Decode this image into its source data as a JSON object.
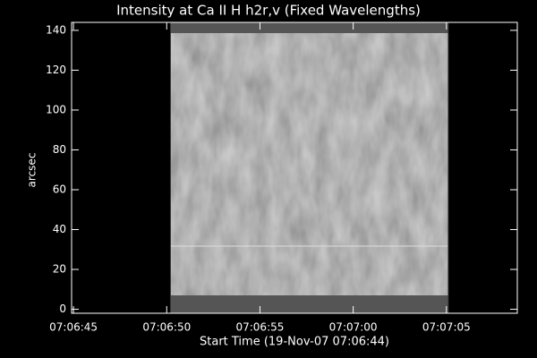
{
  "chart_data": {
    "type": "image",
    "title": "Intensity at Ca II H h2r,v (Fixed Wavelengths)",
    "x_label": "Start Time (19-Nov-07 07:06:44)",
    "y_label": "arcsec",
    "xlim": [
      0.9,
      24.8
    ],
    "ylim": [
      -2,
      144
    ],
    "xticks": [
      {
        "value": 1,
        "label": "07:06:45"
      },
      {
        "value": 6,
        "label": "07:06:50"
      },
      {
        "value": 11,
        "label": "07:06:55"
      },
      {
        "value": 16,
        "label": "07:07:00"
      },
      {
        "value": 21,
        "label": "07:07:05"
      }
    ],
    "yticks": [
      0,
      20,
      40,
      60,
      80,
      100,
      120,
      140
    ],
    "image_x": [
      6.2,
      21.1
    ],
    "image_y": [
      -2,
      144
    ]
  }
}
